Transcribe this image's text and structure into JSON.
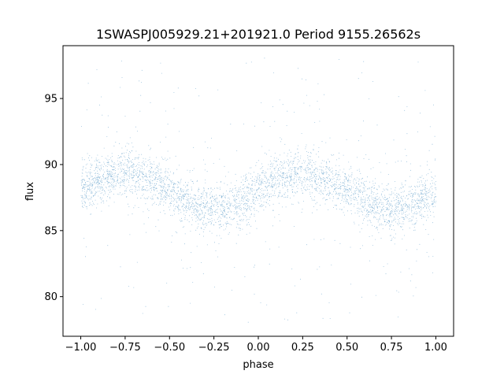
{
  "chart_data": {
    "type": "scatter",
    "title": "1SWASPJ005929.21+201921.0 Period 9155.26562s",
    "xlabel": "phase",
    "ylabel": "flux",
    "xlim": [
      -1.1,
      1.1
    ],
    "ylim": [
      77,
      99
    ],
    "xticks": [
      -1.0,
      -0.75,
      -0.5,
      -0.25,
      0.0,
      0.25,
      0.5,
      0.75,
      1.0
    ],
    "xtick_labels": [
      "−1.00",
      "−0.75",
      "−0.50",
      "−0.25",
      "0.00",
      "0.25",
      "0.50",
      "0.75",
      "1.00"
    ],
    "yticks": [
      80,
      85,
      90,
      95
    ],
    "ytick_labels": [
      "80",
      "85",
      "90",
      "95"
    ],
    "grid": false,
    "marker_color": "#1f77b4",
    "series": [
      {
        "phase_range": [
          -1.0,
          1.0
        ],
        "model": "sinusoid",
        "mean_flux": 88.0,
        "amplitude": 1.4,
        "peak_phases": [
          -0.75,
          0.25
        ],
        "trough_phases": [
          -0.25,
          0.75
        ],
        "core_band_halfwidth": 1.6,
        "outlier_range": [
          78.0,
          98.3
        ],
        "approx_points": 40000
      }
    ]
  }
}
